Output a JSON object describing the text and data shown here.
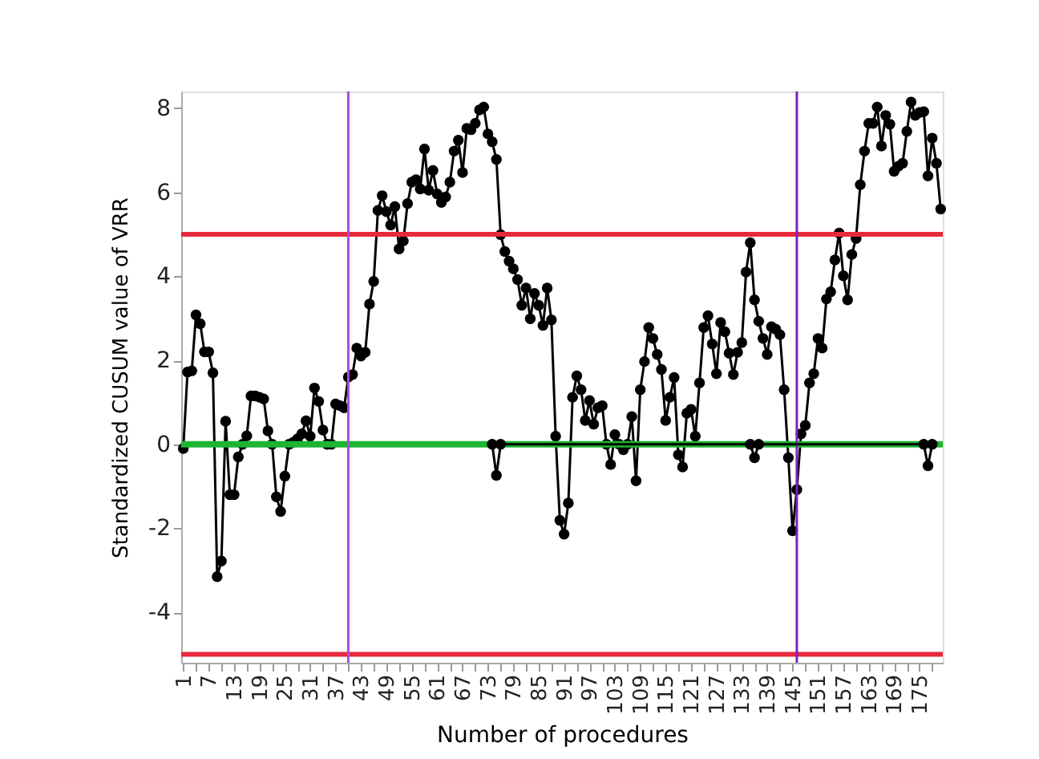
{
  "chart_data": {
    "type": "line",
    "xlabel": "Number of procedures",
    "ylabel": "Standardized CUSUM value of VRR",
    "xlim": [
      0.5,
      180.5
    ],
    "ylim": [
      -5.2,
      8.4
    ],
    "yticks": [
      -4,
      -2,
      0,
      2,
      4,
      6,
      8
    ],
    "xticks": [
      1,
      {
        "value": 4,
        "label": null
      },
      7,
      {
        "value": 10,
        "label": null
      },
      13,
      {
        "value": 16,
        "label": null
      },
      19,
      {
        "value": 22,
        "label": null
      },
      25,
      {
        "value": 28,
        "label": null
      },
      31,
      {
        "value": 34,
        "label": null
      },
      37,
      {
        "value": 40,
        "label": null
      },
      43,
      {
        "value": 46,
        "label": null
      },
      49,
      {
        "value": 52,
        "label": null
      },
      55,
      {
        "value": 58,
        "label": null
      },
      61,
      {
        "value": 64,
        "label": null
      },
      67,
      {
        "value": 70,
        "label": null
      },
      73,
      {
        "value": 76,
        "label": null
      },
      79,
      {
        "value": 82,
        "label": null
      },
      85,
      {
        "value": 88,
        "label": null
      },
      91,
      {
        "value": 94,
        "label": null
      },
      97,
      {
        "value": 100,
        "label": null
      },
      103,
      {
        "value": 106,
        "label": null
      },
      109,
      {
        "value": 112,
        "label": null
      },
      115,
      {
        "value": 118,
        "label": null
      },
      121,
      {
        "value": 124,
        "label": null
      },
      127,
      {
        "value": 130,
        "label": null
      },
      133,
      {
        "value": 136,
        "label": null
      },
      139,
      {
        "value": 142,
        "label": null
      },
      145,
      {
        "value": 148,
        "label": null
      },
      151,
      {
        "value": 154,
        "label": null
      },
      157,
      {
        "value": 160,
        "label": null
      },
      163,
      {
        "value": 166,
        "label": null
      },
      169,
      {
        "value": 172,
        "label": null
      },
      175,
      {
        "value": 178,
        "label": null
      }
    ],
    "marker": "circle",
    "line_style": "solid",
    "x": [
      1,
      2,
      3,
      4,
      5,
      6,
      7,
      8,
      9,
      10,
      11,
      12,
      13,
      14,
      15,
      16,
      17,
      18,
      19,
      20,
      21,
      22,
      23,
      24,
      25,
      26,
      27,
      28,
      29,
      30,
      31,
      32,
      33,
      34,
      35,
      36,
      37,
      38,
      39,
      40,
      41,
      42,
      43,
      44,
      45,
      46,
      47,
      48,
      49,
      50,
      51,
      52,
      53,
      54,
      55,
      56,
      57,
      58,
      59,
      60,
      61,
      62,
      63,
      64,
      65,
      66,
      67,
      68,
      69,
      70,
      71,
      72,
      73,
      74,
      75,
      76,
      77,
      78,
      79,
      80,
      81,
      82,
      83,
      84,
      85,
      86,
      87,
      88,
      89,
      90,
      91,
      92,
      93,
      94,
      95,
      96,
      97,
      98,
      99,
      100,
      101,
      102,
      103,
      104,
      105,
      106,
      107,
      108,
      109,
      110,
      111,
      112,
      113,
      114,
      115,
      116,
      117,
      118,
      119,
      120,
      121,
      122,
      123,
      124,
      125,
      126,
      127,
      128,
      129,
      130,
      131,
      132,
      133,
      134,
      135,
      136,
      137,
      138,
      139,
      140,
      141,
      142,
      143,
      144,
      145,
      146,
      147,
      148,
      149,
      150,
      151,
      152,
      153,
      154,
      155,
      156,
      157,
      158,
      159,
      160,
      161,
      162,
      163,
      164,
      165,
      166,
      167,
      168,
      169,
      170,
      171,
      172,
      173,
      174,
      175,
      176,
      177,
      178,
      179,
      180
    ],
    "series": [
      {
        "color": "#000000",
        "values": [
          -0.1,
          1.72,
          1.75,
          3.08,
          2.87,
          2.2,
          2.2,
          1.7,
          -3.15,
          -2.78,
          0.55,
          -1.2,
          -1.2,
          -0.3,
          0,
          0.2,
          1.15,
          1.15,
          1.12,
          1.08,
          0.32,
          0,
          -1.25,
          -1.6,
          -0.76,
          0,
          0.05,
          0.13,
          0.25,
          0.56,
          0.19,
          1.34,
          1.02,
          0.34,
          0,
          0,
          0.96,
          0.92,
          0.87,
          1.6,
          1.66,
          2.29,
          2.1,
          2.19,
          3.34,
          3.88,
          5.57,
          5.92,
          5.54,
          5.22,
          5.66,
          4.65,
          4.84,
          5.73,
          6.24,
          6.3,
          6.08,
          7.03,
          6.05,
          6.52,
          5.96,
          5.76,
          5.89,
          6.24,
          6.98,
          7.24,
          6.47,
          7.52,
          7.49,
          7.64,
          7.96,
          8.03,
          7.39,
          7.2,
          6.78,
          4.99,
          4.59,
          4.36,
          4.18,
          3.92,
          3.31,
          3.72,
          2.99,
          3.59,
          3.31,
          2.83,
          3.72,
          2.96,
          0.19,
          -1.81,
          -2.14,
          -1.4,
          1.12,
          1.63,
          1.3,
          0.57,
          1.04,
          0.48,
          0.87,
          0.92,
          0,
          -0.48,
          0.23,
          0,
          -0.13,
          0,
          0.66,
          -0.87,
          1.3,
          1.97,
          2.78,
          2.52,
          2.14,
          1.78,
          0.57,
          1.12,
          1.59,
          -0.25,
          -0.54,
          0.74,
          0.83,
          0.19,
          1.46,
          2.78,
          3.06,
          2.39,
          1.68,
          2.9,
          2.68,
          2.17,
          1.66,
          2.19,
          2.42,
          4.1,
          4.8,
          3.44,
          2.93,
          2.52,
          2.14,
          2.8,
          2.74,
          2.61,
          1.3,
          -0.32,
          -2.06,
          -1.08,
          0.25,
          0.45,
          1.46,
          1.68,
          2.52,
          2.29,
          3.46,
          3.63,
          4.39,
          5.03,
          4.01,
          3.44,
          4.52,
          4.9,
          6.18,
          6.98,
          7.64,
          7.64,
          8.03,
          7.1,
          7.83,
          7.62,
          6.5,
          6.62,
          6.69,
          7.45,
          8.15,
          7.83,
          7.9,
          7.92,
          6.39,
          7.29,
          6.69,
          5.6
        ]
      },
      {
        "color": "#000000",
        "x": [
          74,
          75,
          76,
          135,
          136,
          137,
          176,
          177,
          178
        ],
        "values": [
          0,
          -0.74,
          0,
          0,
          -0.32,
          0,
          0,
          -0.51,
          0
        ]
      }
    ],
    "ref_lines": [
      {
        "axis": "y",
        "value": 0,
        "label": null,
        "color": "#1db532"
      },
      {
        "axis": "y",
        "value": 5,
        "label": null,
        "color": "#e8293c"
      },
      {
        "axis": "y",
        "value": -5,
        "label": null,
        "color": "#e8293c"
      },
      {
        "axis": "x",
        "value": 40,
        "label": null,
        "color": "#a64de6"
      },
      {
        "axis": "x",
        "value": 146,
        "label": null,
        "color": "#7b22c4"
      }
    ]
  }
}
